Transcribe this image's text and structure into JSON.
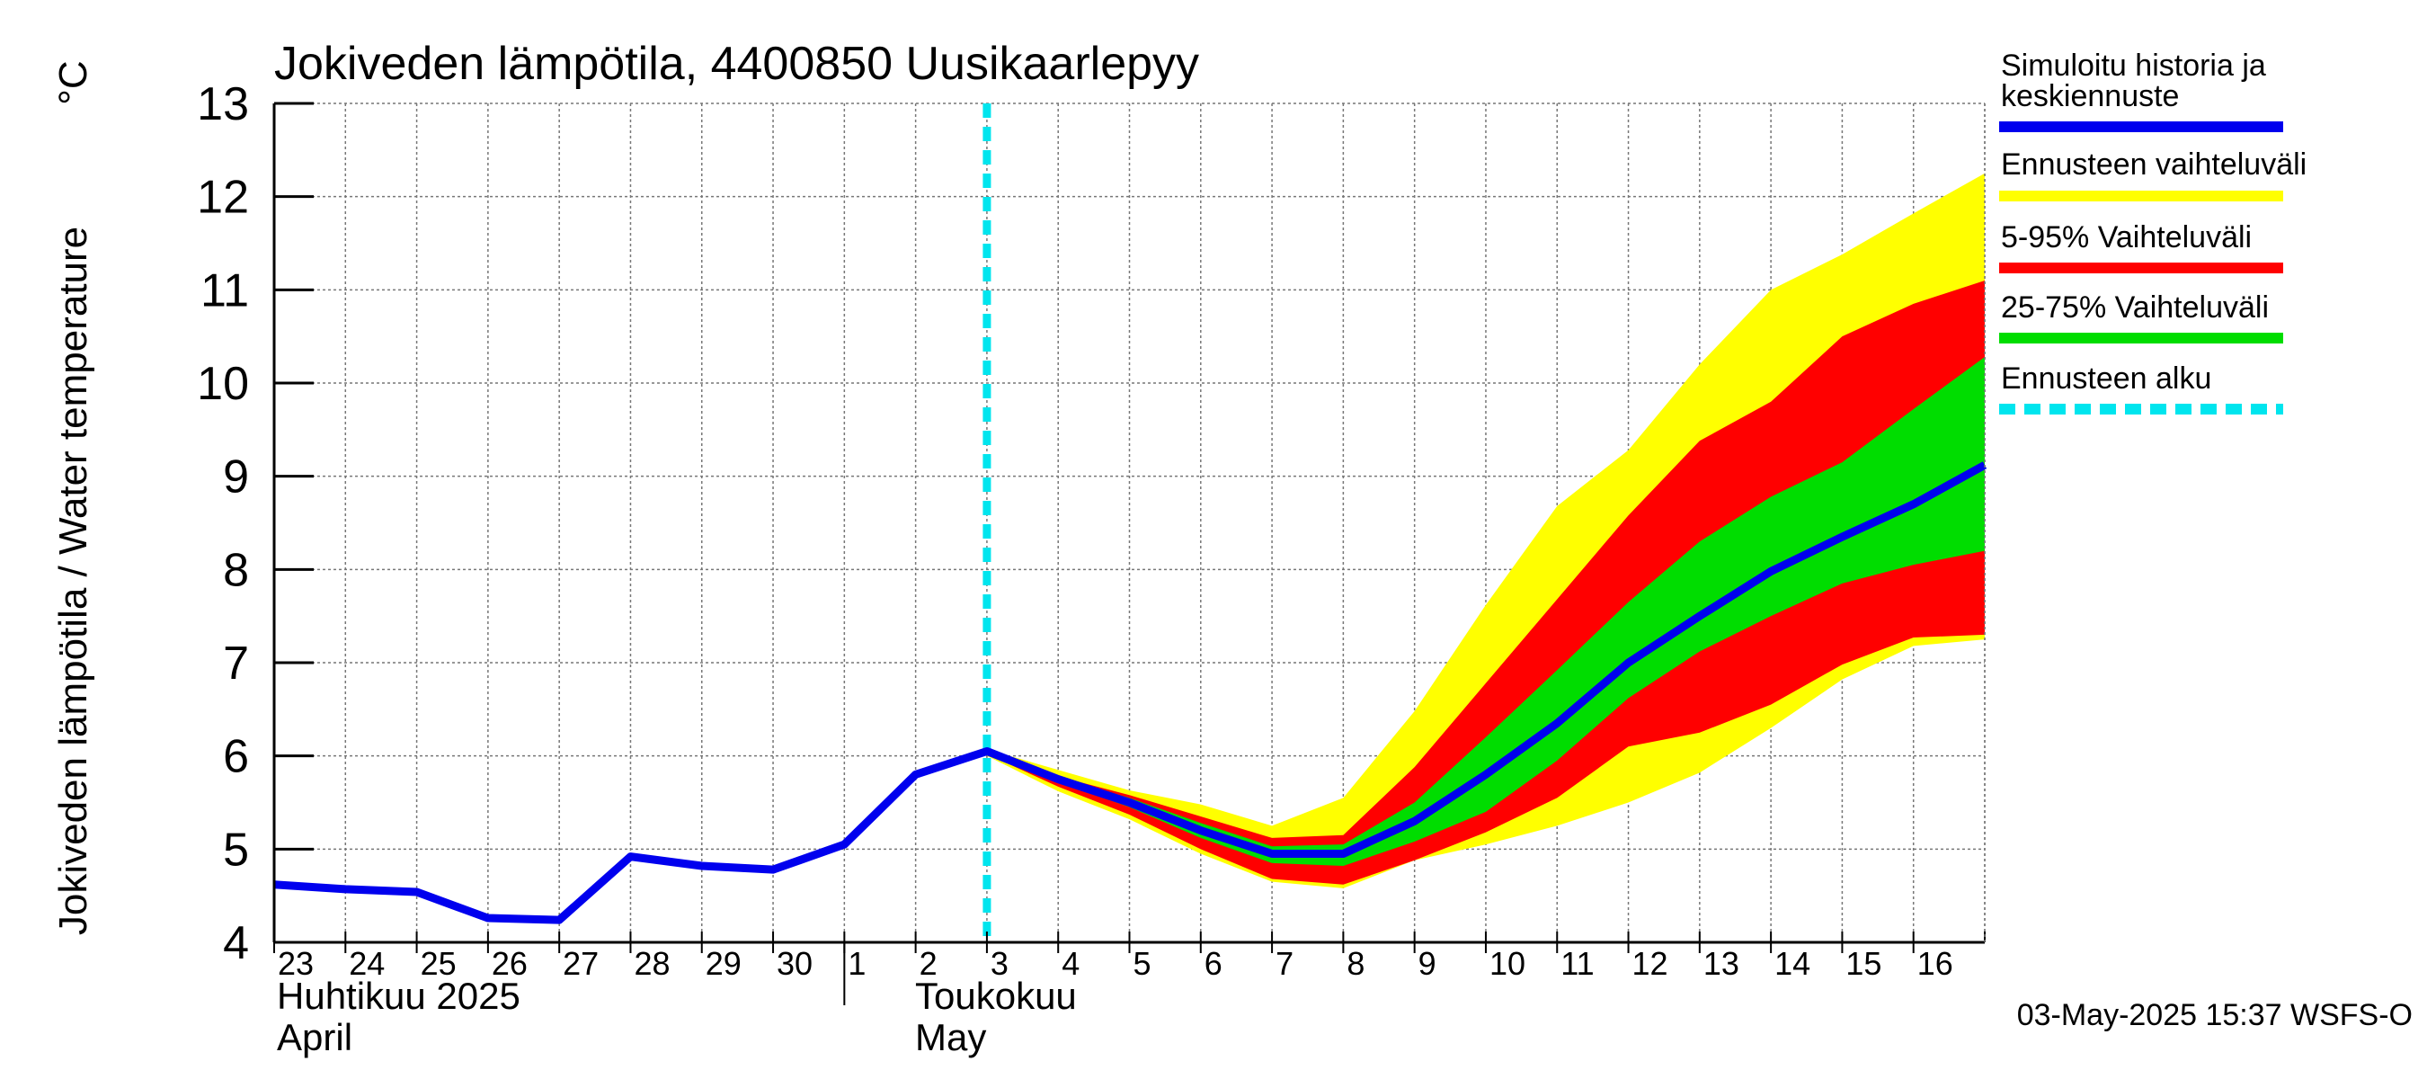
{
  "chart_data": {
    "type": "area",
    "title": "Jokiveden lämpötila, 4400850 Uusikaarlepyy",
    "ylabel": "Jokiveden lämpötila / Water temperature",
    "yunit": "°C",
    "ylim": [
      4,
      13
    ],
    "yticks": [
      "4",
      "5",
      "6",
      "7",
      "8",
      "9",
      "10",
      "11",
      "12",
      "13"
    ],
    "xlim": [
      "2025-04-23",
      "2025-05-17"
    ],
    "grid": true,
    "legend_position": "right",
    "x_day_labels": [
      {
        "date": "2025-04-23",
        "label": "23"
      },
      {
        "date": "2025-04-24",
        "label": "24"
      },
      {
        "date": "2025-04-25",
        "label": "25"
      },
      {
        "date": "2025-04-26",
        "label": "26"
      },
      {
        "date": "2025-04-27",
        "label": "27"
      },
      {
        "date": "2025-04-28",
        "label": "28"
      },
      {
        "date": "2025-04-29",
        "label": "29"
      },
      {
        "date": "2025-04-30",
        "label": "30"
      },
      {
        "date": "2025-05-01",
        "label": "1"
      },
      {
        "date": "2025-05-02",
        "label": "2"
      },
      {
        "date": "2025-05-03",
        "label": "3"
      },
      {
        "date": "2025-05-04",
        "label": "4"
      },
      {
        "date": "2025-05-05",
        "label": "5"
      },
      {
        "date": "2025-05-06",
        "label": "6"
      },
      {
        "date": "2025-05-07",
        "label": "7"
      },
      {
        "date": "2025-05-08",
        "label": "8"
      },
      {
        "date": "2025-05-09",
        "label": "9"
      },
      {
        "date": "2025-05-10",
        "label": "10"
      },
      {
        "date": "2025-05-11",
        "label": "11"
      },
      {
        "date": "2025-05-12",
        "label": "12"
      },
      {
        "date": "2025-05-13",
        "label": "13"
      },
      {
        "date": "2025-05-14",
        "label": "14"
      },
      {
        "date": "2025-05-15",
        "label": "15"
      },
      {
        "date": "2025-05-16",
        "label": "16"
      }
    ],
    "month_labels": {
      "april_fi": "Huhtikuu  2025",
      "april_en": "April",
      "may_fi": "Toukokuu",
      "may_en": "May"
    },
    "forecast_start": "2025-05-03",
    "series": [
      {
        "name": "Simuloitu historia ja keskiennuste",
        "style": "line",
        "color": "#0000ee",
        "x": [
          "2025-04-23",
          "2025-04-24",
          "2025-04-25",
          "2025-04-26",
          "2025-04-27",
          "2025-04-28",
          "2025-04-29",
          "2025-04-30",
          "2025-05-01",
          "2025-05-02",
          "2025-05-03",
          "2025-05-04",
          "2025-05-05",
          "2025-05-06",
          "2025-05-07",
          "2025-05-08",
          "2025-05-09",
          "2025-05-10",
          "2025-05-11",
          "2025-05-12",
          "2025-05-13",
          "2025-05-14",
          "2025-05-15",
          "2025-05-16",
          "2025-05-17"
        ],
        "values": [
          4.62,
          4.57,
          4.54,
          4.26,
          4.24,
          4.92,
          4.82,
          4.78,
          5.05,
          5.8,
          6.05,
          5.75,
          5.5,
          5.2,
          4.95,
          4.95,
          5.3,
          5.8,
          6.35,
          7.0,
          7.5,
          7.98,
          8.35,
          8.7,
          9.12
        ]
      },
      {
        "name": "Ennusteen vaihteluväli",
        "style": "band",
        "color": "#ffff00",
        "x": [
          "2025-05-03",
          "2025-05-04",
          "2025-05-05",
          "2025-05-06",
          "2025-05-07",
          "2025-05-08",
          "2025-05-09",
          "2025-05-10",
          "2025-05-11",
          "2025-05-12",
          "2025-05-13",
          "2025-05-14",
          "2025-05-15",
          "2025-05-16",
          "2025-05-17"
        ],
        "low": [
          6.0,
          5.62,
          5.32,
          4.95,
          4.65,
          4.58,
          4.88,
          5.05,
          5.25,
          5.5,
          5.82,
          6.3,
          6.82,
          7.18,
          7.25
        ],
        "high": [
          6.07,
          5.85,
          5.63,
          5.48,
          5.25,
          5.55,
          6.48,
          7.62,
          8.68,
          9.28,
          10.2,
          11.0,
          11.38,
          11.82,
          12.25
        ]
      },
      {
        "name": "5-95% Vaihteluväli",
        "style": "band",
        "color": "#ff0000",
        "x": [
          "2025-05-03",
          "2025-05-04",
          "2025-05-05",
          "2025-05-06",
          "2025-05-07",
          "2025-05-08",
          "2025-05-09",
          "2025-05-10",
          "2025-05-11",
          "2025-05-12",
          "2025-05-13",
          "2025-05-14",
          "2025-05-15",
          "2025-05-16",
          "2025-05-17"
        ],
        "low": [
          6.02,
          5.67,
          5.37,
          5.0,
          4.68,
          4.62,
          4.88,
          5.18,
          5.55,
          6.1,
          6.25,
          6.55,
          6.98,
          7.27,
          7.3
        ],
        "high": [
          6.06,
          5.78,
          5.58,
          5.35,
          5.12,
          5.15,
          5.88,
          6.78,
          7.68,
          8.58,
          9.38,
          9.8,
          10.5,
          10.85,
          11.1
        ]
      },
      {
        "name": "25-75% Vaihteluväli",
        "style": "band",
        "color": "#00dd00",
        "x": [
          "2025-05-03",
          "2025-05-04",
          "2025-05-05",
          "2025-05-06",
          "2025-05-07",
          "2025-05-08",
          "2025-05-09",
          "2025-05-10",
          "2025-05-11",
          "2025-05-12",
          "2025-05-13",
          "2025-05-14",
          "2025-05-15",
          "2025-05-16",
          "2025-05-17"
        ],
        "low": [
          6.04,
          5.72,
          5.45,
          5.12,
          4.85,
          4.82,
          5.08,
          5.4,
          5.95,
          6.62,
          7.12,
          7.5,
          7.85,
          8.05,
          8.2
        ],
        "high": [
          6.06,
          5.77,
          5.55,
          5.28,
          5.03,
          5.05,
          5.5,
          6.2,
          6.92,
          7.65,
          8.3,
          8.78,
          9.15,
          9.72,
          10.28
        ]
      },
      {
        "name": "Ennusteen alku",
        "style": "dashed-vline",
        "color": "#00e5ee",
        "x": [
          "2025-05-03"
        ]
      }
    ],
    "footer": "03-May-2025 15:37 WSFS-O"
  }
}
